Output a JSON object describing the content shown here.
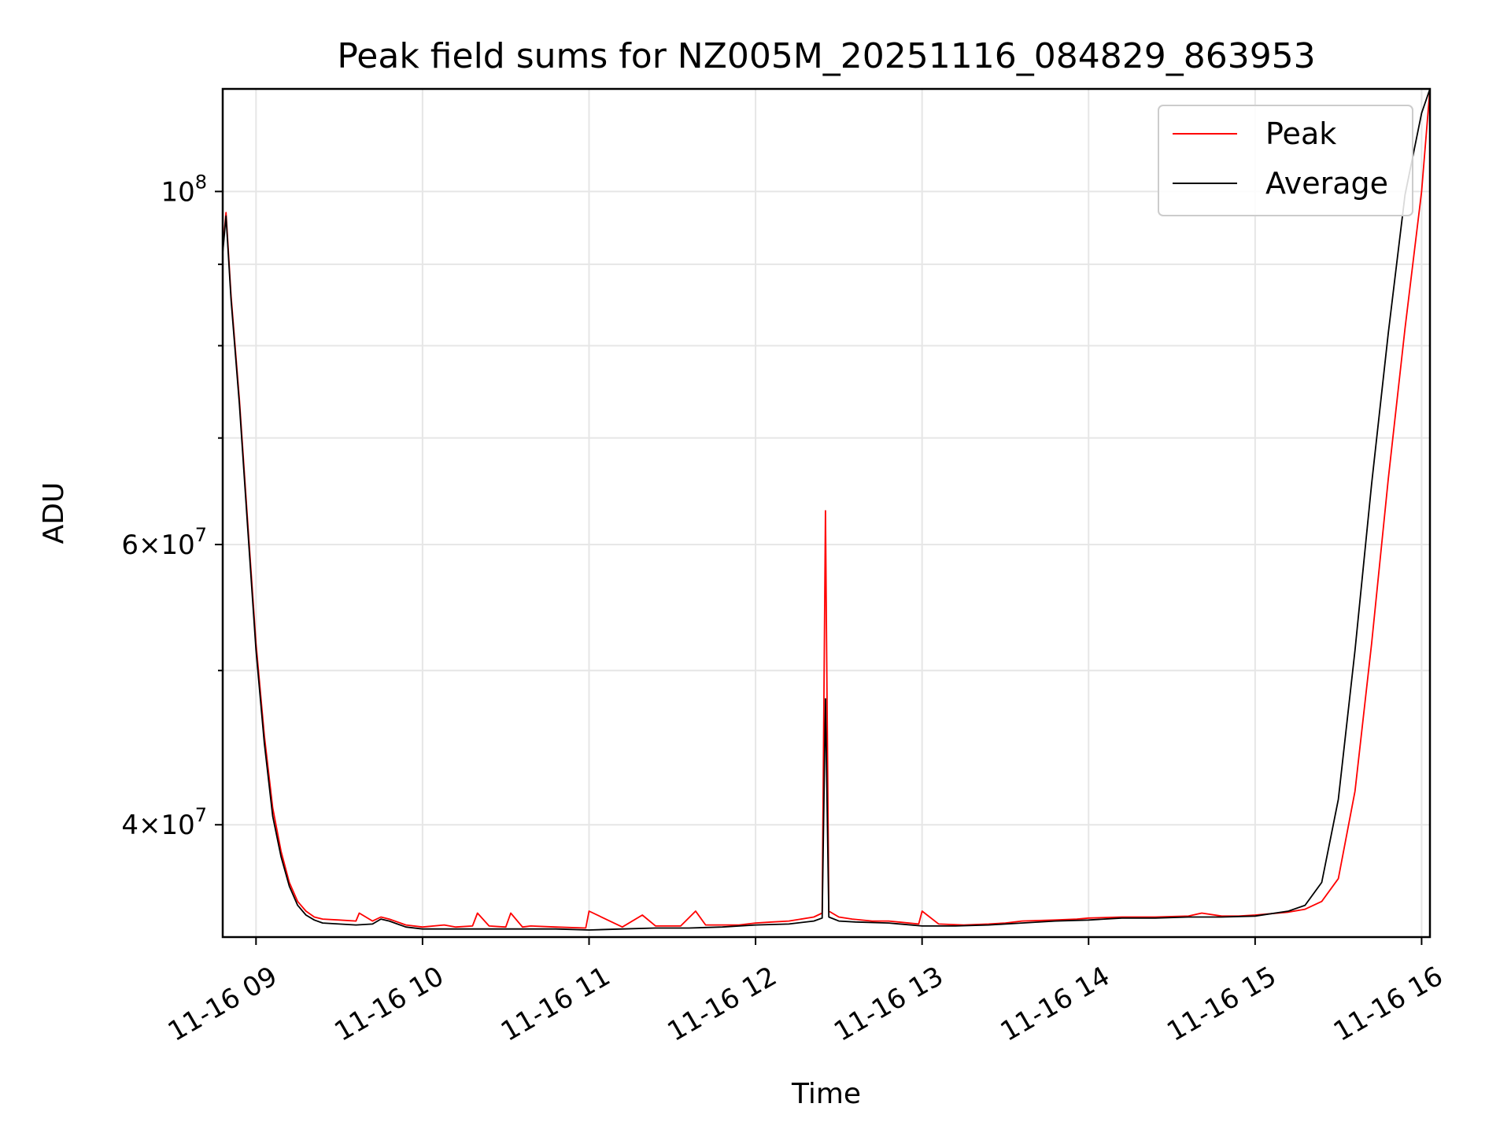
{
  "chart_data": {
    "type": "line",
    "title": "Peak field sums for NZ005M_20251116_084829_863953",
    "xlabel": "Time",
    "ylabel": "ADU",
    "y_scale": "log",
    "grid": true,
    "legend_position": "top-right",
    "xlim": [
      8.8,
      16.05
    ],
    "ylim": [
      34000000,
      116000000
    ],
    "x_ticks": [
      {
        "value": 9,
        "label": "11-16 09"
      },
      {
        "value": 10,
        "label": "11-16 10"
      },
      {
        "value": 11,
        "label": "11-16 11"
      },
      {
        "value": 12,
        "label": "11-16 12"
      },
      {
        "value": 13,
        "label": "11-16 13"
      },
      {
        "value": 14,
        "label": "11-16 14"
      },
      {
        "value": 15,
        "label": "11-16 15"
      },
      {
        "value": 16,
        "label": "11-16 16"
      }
    ],
    "y_major_ticks": [
      {
        "value": 40000000,
        "mantissa": "4",
        "exponent": "7"
      },
      {
        "value": 60000000,
        "mantissa": "6",
        "exponent": "7"
      },
      {
        "value": 100000000,
        "mantissa": "",
        "exponent": "8"
      }
    ],
    "y_minor_ticks": [
      50000000,
      70000000,
      80000000,
      90000000
    ],
    "series": [
      {
        "name": "Peak",
        "color": "#ff0000",
        "x": [
          8.8,
          8.82,
          8.85,
          8.9,
          8.95,
          9.0,
          9.05,
          9.1,
          9.15,
          9.2,
          9.25,
          9.3,
          9.35,
          9.4,
          9.5,
          9.6,
          9.62,
          9.7,
          9.75,
          9.8,
          9.9,
          10.0,
          10.13,
          10.2,
          10.3,
          10.33,
          10.4,
          10.5,
          10.53,
          10.6,
          10.65,
          10.8,
          10.98,
          11.0,
          11.2,
          11.32,
          11.4,
          11.55,
          11.64,
          11.7,
          11.9,
          12.0,
          12.1,
          12.2,
          12.35,
          12.4,
          12.42,
          12.44,
          12.5,
          12.58,
          12.7,
          12.8,
          12.98,
          13.0,
          13.1,
          13.25,
          13.4,
          13.5,
          13.6,
          13.8,
          13.93,
          14.0,
          14.2,
          14.4,
          14.6,
          14.68,
          14.8,
          14.9,
          15.0,
          15.2,
          15.3,
          15.4,
          15.5,
          15.6,
          15.7,
          15.8,
          15.9,
          16.0,
          16.05
        ],
        "values": [
          92000000,
          97000000,
          86000000,
          74000000,
          62000000,
          52000000,
          45500000,
          41000000,
          38500000,
          36800000,
          35800000,
          35300000,
          35000000,
          34900000,
          34850000,
          34800000,
          35200000,
          34800000,
          35000000,
          34900000,
          34600000,
          34500000,
          34600000,
          34500000,
          34550000,
          35200000,
          34550000,
          34500000,
          35200000,
          34500000,
          34550000,
          34500000,
          34450000,
          35300000,
          34500000,
          35100000,
          34550000,
          34550000,
          35300000,
          34600000,
          34600000,
          34700000,
          34750000,
          34800000,
          35000000,
          35200000,
          63000000,
          35300000,
          35000000,
          34900000,
          34800000,
          34800000,
          34650000,
          35300000,
          34650000,
          34600000,
          34650000,
          34700000,
          34800000,
          34850000,
          34900000,
          34950000,
          35000000,
          35000000,
          35050000,
          35200000,
          35050000,
          35050000,
          35100000,
          35250000,
          35400000,
          35800000,
          37000000,
          42000000,
          52000000,
          66000000,
          82000000,
          100000000,
          116000000
        ]
      },
      {
        "name": "Average",
        "color": "#000000",
        "x": [
          8.8,
          8.82,
          8.85,
          8.9,
          8.95,
          9.0,
          9.05,
          9.1,
          9.15,
          9.2,
          9.25,
          9.3,
          9.35,
          9.4,
          9.5,
          9.6,
          9.7,
          9.75,
          9.8,
          9.9,
          10.0,
          10.2,
          10.4,
          10.6,
          10.8,
          11.0,
          11.2,
          11.4,
          11.6,
          11.8,
          12.0,
          12.2,
          12.35,
          12.4,
          12.42,
          12.44,
          12.5,
          12.6,
          12.8,
          13.0,
          13.2,
          13.4,
          13.6,
          13.8,
          14.0,
          14.2,
          14.4,
          14.6,
          14.8,
          15.0,
          15.2,
          15.3,
          15.4,
          15.5,
          15.6,
          15.7,
          15.8,
          15.9,
          16.0,
          16.05
        ],
        "values": [
          91500000,
          96500000,
          85500000,
          73500000,
          61500000,
          51500000,
          45000000,
          40500000,
          38200000,
          36600000,
          35600000,
          35100000,
          34850000,
          34700000,
          34650000,
          34600000,
          34650000,
          34900000,
          34800000,
          34500000,
          34400000,
          34400000,
          34400000,
          34400000,
          34400000,
          34350000,
          34400000,
          34450000,
          34450000,
          34500000,
          34600000,
          34650000,
          34800000,
          34950000,
          48000000,
          35000000,
          34800000,
          34750000,
          34700000,
          34550000,
          34550000,
          34600000,
          34700000,
          34800000,
          34850000,
          34950000,
          34950000,
          35000000,
          35000000,
          35050000,
          35300000,
          35600000,
          36800000,
          41500000,
          51500000,
          65500000,
          81500000,
          99500000,
          112000000,
          116000000
        ]
      }
    ]
  }
}
